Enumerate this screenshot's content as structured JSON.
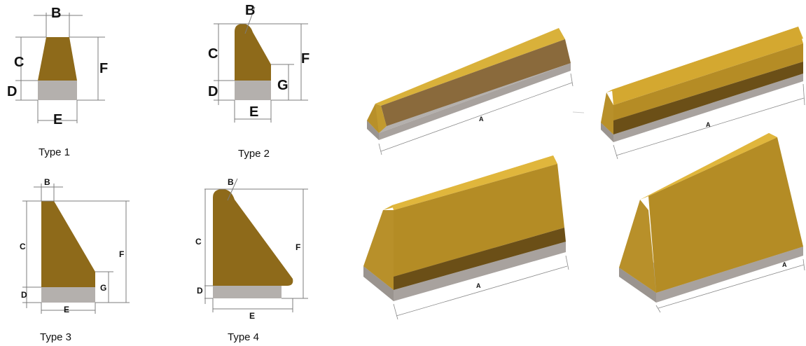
{
  "colors": {
    "brown": "#8e6a1a",
    "brown_dark": "#6b4f17",
    "gold_top": "#d9b13a",
    "gold_face": "#b18b24",
    "base_grey": "#b4b0ad",
    "base_grey_dark": "#9a948f",
    "dim_line": "#7c7c7c"
  },
  "profiles": [
    {
      "caption": "Type 1",
      "labels": {
        "B": "B",
        "C": "C",
        "D": "D",
        "E": "E",
        "F": "F"
      }
    },
    {
      "caption": "Type 2",
      "labels": {
        "B": "B",
        "C": "C",
        "D": "D",
        "E": "E",
        "F": "F",
        "G": "G"
      }
    },
    {
      "caption": "Type 3",
      "labels": {
        "B": "B",
        "C": "C",
        "D": "D",
        "E": "E",
        "F": "F",
        "G": "G"
      }
    },
    {
      "caption": "Type 4",
      "labels": {
        "B": "B",
        "C": "C",
        "D": "D",
        "E": "E",
        "F": "F"
      }
    }
  ],
  "views_3d": [
    {
      "dimension": "A"
    },
    {
      "dimension": "A"
    },
    {
      "dimension": "A"
    },
    {
      "dimension": "A"
    }
  ]
}
